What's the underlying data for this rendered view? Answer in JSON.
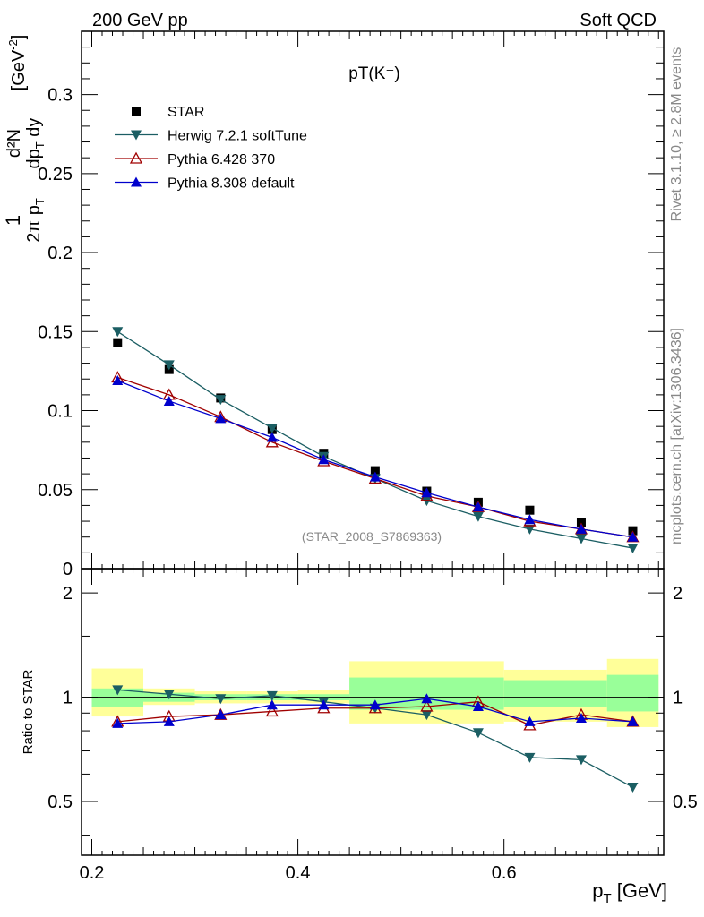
{
  "header": {
    "left": "200 GeV pp",
    "right": "Soft QCD"
  },
  "main_title": "pT(K⁻)",
  "watermark": "(STAR_2008_S7869363)",
  "side_label_top": "Rivet 3.1.10, ≥ 2.8M events",
  "side_label_bottom": "mcplots.cern.ch [arXiv:1306.3436]",
  "ylabel_top_parts": {
    "frac1_num": "1",
    "frac1_den": "2π p",
    "frac1_den_sub": "T",
    "frac2_num": "d²N",
    "frac2_den": "dp",
    "frac2_den_sub": "T",
    "frac2_den_tail": " dy",
    "unit": "[GeV",
    "unit_sup": "-2",
    "unit_close": "]"
  },
  "ylabel_bottom": "Ratio to STAR",
  "xlabel": {
    "main": "p",
    "sub": "T",
    "unit": " [GeV]"
  },
  "colors": {
    "star": "#000000",
    "herwig": "#1b5e63",
    "pythia6": "#a00000",
    "pythia8": "#0000cc",
    "band_outer": "#ffff99",
    "band_inner": "#99ff99"
  },
  "chart_data": [
    {
      "type": "scatter",
      "panel": "main",
      "xlim": [
        0.19,
        0.755
      ],
      "ylim": [
        0,
        0.34
      ],
      "y_ticks": [
        0,
        0.05,
        0.1,
        0.15,
        0.2,
        0.25,
        0.3
      ],
      "y_tick_labels": [
        "0",
        "0.05",
        "0.1",
        "0.15",
        "0.2",
        "0.25",
        "0.3"
      ],
      "x": [
        0.225,
        0.275,
        0.325,
        0.375,
        0.425,
        0.475,
        0.525,
        0.575,
        0.625,
        0.675,
        0.725
      ],
      "series": [
        {
          "name": "STAR",
          "marker": "square",
          "values": [
            0.143,
            0.126,
            0.108,
            0.088,
            0.073,
            0.062,
            0.049,
            0.042,
            0.037,
            0.029,
            0.024
          ]
        },
        {
          "name": "Herwig 7.2.1 softTune",
          "marker": "triangle-down",
          "values": [
            0.15,
            0.129,
            0.107,
            0.089,
            0.071,
            0.057,
            0.043,
            0.033,
            0.025,
            0.019,
            0.013
          ]
        },
        {
          "name": "Pythia 6.428 370",
          "marker": "triangle-open",
          "values": [
            0.121,
            0.11,
            0.096,
            0.08,
            0.068,
            0.057,
            0.046,
            0.039,
            0.03,
            0.025,
            0.02
          ]
        },
        {
          "name": "Pythia 8.308 default",
          "marker": "triangle-up",
          "values": [
            0.119,
            0.106,
            0.095,
            0.083,
            0.069,
            0.058,
            0.048,
            0.039,
            0.031,
            0.025,
            0.02
          ]
        }
      ]
    },
    {
      "type": "line",
      "panel": "ratio",
      "xlim": [
        0.19,
        0.755
      ],
      "ylim": [
        0.35,
        2.35
      ],
      "x_ticks": [
        0.2,
        0.4,
        0.6
      ],
      "x_tick_labels": [
        "0.2",
        "0.4",
        "0.6"
      ],
      "y_tick_labels_left": [
        "0.5",
        "1",
        "2"
      ],
      "y_tick_values": [
        0.5,
        1,
        2
      ],
      "reference_line": 1,
      "bands": [
        {
          "x0": 0.2,
          "x1": 0.25,
          "outer": [
            0.88,
            1.21
          ],
          "inner": [
            0.94,
            1.06
          ]
        },
        {
          "x0": 0.25,
          "x1": 0.3,
          "outer": [
            0.95,
            1.06
          ],
          "inner": [
            0.97,
            1.03
          ]
        },
        {
          "x0": 0.3,
          "x1": 0.35,
          "outer": [
            0.96,
            1.04
          ],
          "inner": [
            0.98,
            1.02
          ]
        },
        {
          "x0": 0.35,
          "x1": 0.4,
          "outer": [
            0.96,
            1.04
          ],
          "inner": [
            0.98,
            1.02
          ]
        },
        {
          "x0": 0.4,
          "x1": 0.45,
          "outer": [
            0.96,
            1.05
          ],
          "inner": [
            0.98,
            1.02
          ]
        },
        {
          "x0": 0.45,
          "x1": 0.6,
          "outer": [
            0.84,
            1.27
          ],
          "inner": [
            0.92,
            1.14
          ]
        },
        {
          "x0": 0.6,
          "x1": 0.7,
          "outer": [
            0.85,
            1.2
          ],
          "inner": [
            0.94,
            1.12
          ]
        },
        {
          "x0": 0.7,
          "x1": 0.75,
          "outer": [
            0.82,
            1.29
          ],
          "inner": [
            0.91,
            1.16
          ]
        }
      ],
      "x": [
        0.225,
        0.275,
        0.325,
        0.375,
        0.425,
        0.475,
        0.525,
        0.575,
        0.625,
        0.675,
        0.725
      ],
      "series": [
        {
          "name": "Herwig 7.2.1 softTune",
          "marker": "triangle-down",
          "values": [
            1.05,
            1.02,
            0.99,
            1.01,
            0.97,
            0.93,
            0.89,
            0.79,
            0.67,
            0.66,
            0.55
          ]
        },
        {
          "name": "Pythia 6.428 370",
          "marker": "triangle-open",
          "values": [
            0.85,
            0.88,
            0.89,
            0.91,
            0.93,
            0.93,
            0.94,
            0.97,
            0.83,
            0.89,
            0.85
          ]
        },
        {
          "name": "Pythia 8.308 default",
          "marker": "triangle-up",
          "values": [
            0.84,
            0.85,
            0.89,
            0.95,
            0.95,
            0.95,
            0.99,
            0.94,
            0.85,
            0.87,
            0.85
          ]
        }
      ]
    }
  ]
}
